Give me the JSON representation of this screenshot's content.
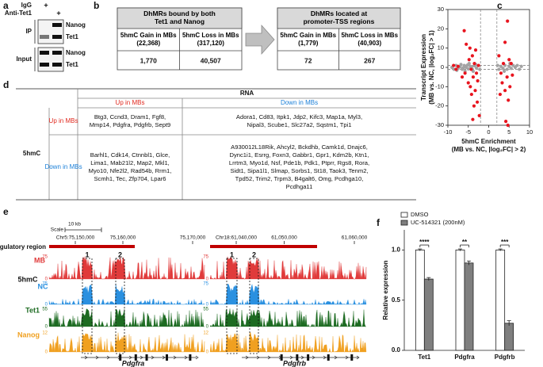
{
  "panel_labels": [
    "a",
    "b",
    "c",
    "d",
    "e",
    "f"
  ],
  "panel_a": {
    "rows": [
      {
        "label": "IgG",
        "sign": "+"
      },
      {
        "label": "Anti-Tet1",
        "sign": "+"
      }
    ],
    "blots": [
      {
        "label": "IP",
        "bands": [
          "Nanog",
          "Tet1"
        ]
      },
      {
        "label": "Input",
        "bands": [
          "Nanog",
          "Tet1"
        ]
      }
    ]
  },
  "panel_b": {
    "tables": [
      {
        "title": "DhMRs bound by both Tet1 and Nanog",
        "headers": [
          "5hmC Gain in MBs (22,368)",
          "5hmC Loss in MBs (317,120)"
        ],
        "values": [
          "1,770",
          "40,507"
        ]
      },
      {
        "title": "DhMRs located at promoter-TSS regions",
        "headers": [
          "5hmC Gain in MBs (1,779)",
          "5hmC Loss in MBs (40,903)"
        ],
        "values": [
          "72",
          "267"
        ]
      }
    ]
  },
  "panel_d": {
    "column_group": "RNA",
    "row_group": "5hmC",
    "column_headers": [
      "Up in MBs",
      "Down in MBs"
    ],
    "row_headers": [
      "Up in MBs",
      "Down in MBs"
    ],
    "cells": [
      [
        [
          "Btg3, Ccnd3, Dram1, Fgf8,",
          "Mmp14, Pdgfra, Pdgfrb, Sept9"
        ],
        [
          "Adora1, Cd83, Itpk1, Jdp2, Kifc3, Map1a, Myl3,",
          "Nipal3, Scube1, Slc27a2, Sqstm1, Tpi1"
        ]
      ],
      [
        [
          "Barhl1, Cdk14, Ctnnbl1, Glce,",
          "Lima1, Mab21l2, Map2, Mkl1,",
          "Myo10, Nfe2l2, Rad54b, Rrm1,",
          "Scmh1, Tec, Zfp704, Lpar6"
        ],
        [
          "A930012L18Rik, Ahcyl2, Bckdhb, Camk1d, Dnajc6,",
          "Dync1i1, Esrrg, Foxn3, Gabbr1, Gpr1, Kdm2b, Ktn1,",
          "Lrrtm3, Myo1d, Nsf, Pde1b, Pdk1, Ptprr, Rgs8, Rora,",
          "Sidt1, Sipa1l1, Slmap, Sorbs1, St18, Taok3, Tenm2,",
          "Tpd52, Trim2, Trpm3, B4galt6, Omg, Pcdhga10,",
          "Pcdhga11"
        ]
      ]
    ]
  },
  "panel_e": {
    "scale_bar": [
      "10 kb",
      "Scale"
    ],
    "region_label": "Regulatory region",
    "mark_label": "5hmC",
    "tracks": [
      {
        "name": "MB",
        "color": "#e03a3a",
        "scale": [
          "75",
          "0"
        ]
      },
      {
        "name": "NC",
        "color": "#2a90e0",
        "scale": [
          "75",
          "0"
        ]
      },
      {
        "name": "Tet1",
        "color": "#1d6b22",
        "scale": [
          "55",
          "0"
        ]
      },
      {
        "name": "Nanog",
        "color": "#f0a020",
        "scale": [
          "12",
          "0"
        ]
      }
    ],
    "loci": [
      {
        "coords": [
          "Chr5:75,150,000",
          "75,160,000",
          "75,170,000"
        ],
        "boxes": [
          "1",
          "2"
        ],
        "gene": "Pdgfra"
      },
      {
        "coords": [
          "Chr18:61,040,000",
          "61,050,000",
          "61,060,000"
        ],
        "boxes": [
          "1",
          "2"
        ],
        "gene": "Pdgfrb"
      }
    ]
  },
  "chart_data": [
    {
      "type": "scatter",
      "xlabel": [
        "5hmC Enrichment",
        "(MB vs. NC, |log₂FC| > 2)"
      ],
      "ylabel": [
        "Transcript Expression",
        "(MB vs. NC, |log₂FC| > 1)"
      ],
      "xlim": [
        -10,
        10
      ],
      "xticks": [
        -10,
        -5,
        0,
        5,
        10
      ],
      "ylim": [
        -30,
        30
      ],
      "yticks": [
        -30,
        -20,
        -10,
        0,
        10,
        20,
        30
      ],
      "vlines": [
        -2,
        2
      ],
      "hlines": [
        -1,
        1
      ],
      "series": [
        {
          "color": "#a3a3a3",
          "x": [
            -9,
            -8.5,
            -8,
            -7.5,
            -7,
            -6.5,
            -6,
            -5.5,
            -5,
            -4.5,
            -4,
            -3.5,
            -3,
            -2.5,
            -2.2,
            -3.8,
            -4.8,
            -5.8,
            -6.8,
            -7.8,
            -3.2,
            -4.2,
            -5.2,
            -6.2,
            2.2,
            2.5,
            3,
            3.5,
            4,
            4.5,
            5,
            5.5,
            6,
            6.5,
            7,
            7.5,
            8,
            5.2,
            3.8
          ],
          "values": [
            0,
            -1,
            1,
            -0.5,
            0.3,
            -1,
            1,
            0,
            -0.8,
            0.5,
            -1,
            0.8,
            -0.3,
            1,
            -1,
            -2,
            2,
            -2,
            1.5,
            -1.5,
            1.5,
            0.2,
            1.2,
            -0.2,
            1,
            -1,
            0.5,
            -0.5,
            1,
            -1,
            0.5,
            -0.5,
            1,
            0,
            1,
            -1,
            0.5,
            2,
            -2
          ]
        },
        {
          "color": "#e8141e",
          "x": [
            -8.6,
            -8,
            -7.5,
            -6,
            -5.8,
            -5.5,
            -5,
            -4.8,
            -4.5,
            -4.3,
            -4.2,
            -4,
            -3.8,
            -3.6,
            -3.5,
            -3.3,
            -3.2,
            -3,
            -2.8,
            -2.7,
            -2.5,
            -2.3,
            -3.9,
            -4.6,
            -6.5,
            2.5,
            3,
            3.3,
            3.6,
            4,
            4.2,
            4.5,
            4.8,
            5,
            5.2,
            5.5,
            4.7,
            4,
            2.8,
            5.8,
            4.6
          ],
          "values": [
            1,
            -1,
            0.5,
            19,
            -3,
            12,
            -8,
            4,
            -10,
            -1,
            -14,
            6,
            -5,
            -20,
            2,
            -12,
            9,
            -3,
            -18,
            -7,
            1,
            -25,
            -27,
            10,
            -5,
            6,
            -3,
            -8,
            2,
            -12,
            -28,
            -5,
            -17,
            4,
            -10,
            2,
            -30,
            13,
            -14,
            -4,
            24
          ]
        }
      ]
    },
    {
      "type": "bar",
      "ylabel": "Relative expression",
      "categories": [
        "Tet1",
        "Pdgfra",
        "Pdgfrb"
      ],
      "ylim": [
        0,
        1.2
      ],
      "yticks": [
        {
          "value": 0,
          "label": "0.0"
        },
        {
          "value": 0.5,
          "label": "0.5"
        },
        {
          "value": 1,
          "label": "1.0"
        }
      ],
      "annotations": [
        "****",
        "**",
        "***"
      ],
      "series": [
        {
          "name": "DMSO",
          "color": "#ffffff",
          "values": [
            1,
            1,
            1
          ],
          "errors": [
            0.01,
            0.01,
            0.01
          ]
        },
        {
          "name": "UC-514321 (200nM)",
          "color": "#7f7f7f",
          "values": [
            0.71,
            0.87,
            0.27
          ],
          "errors": [
            0.015,
            0.02,
            0.025
          ]
        }
      ]
    }
  ]
}
